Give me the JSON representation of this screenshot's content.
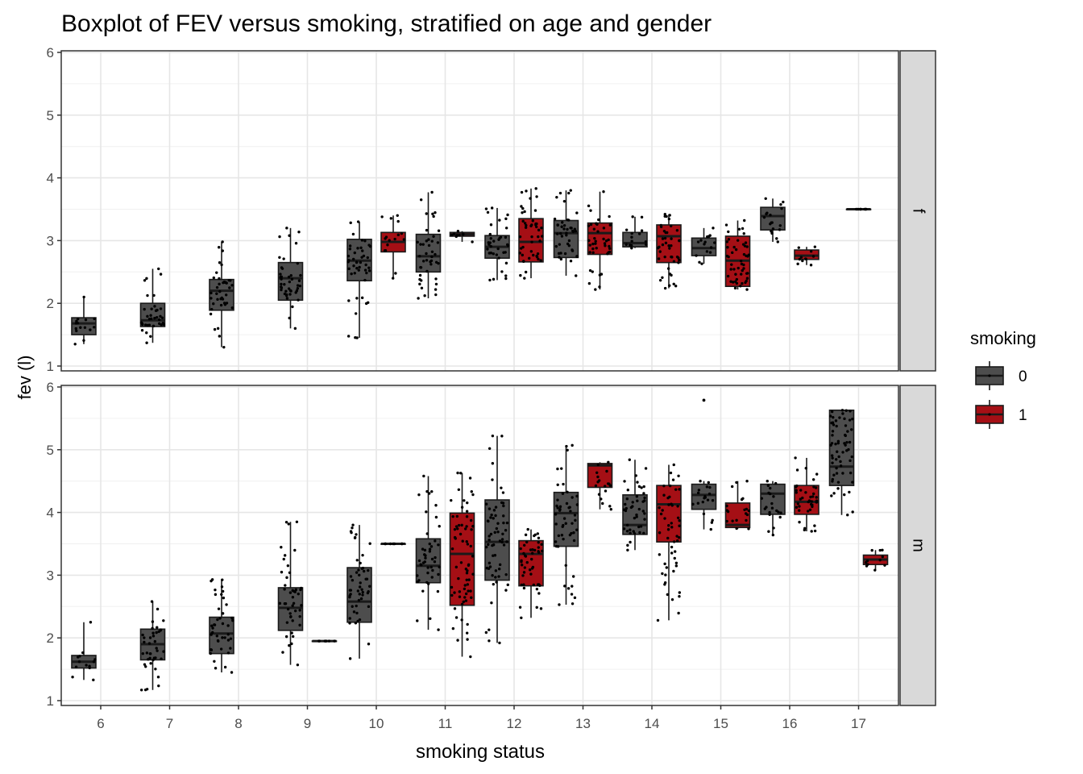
{
  "chart_data": {
    "type": "boxplot",
    "title": "Boxplot of FEV versus smoking, stratified on age and gender",
    "xlabel": "smoking status",
    "ylabel": "fev (l)",
    "x_categories": [
      "6",
      "7",
      "8",
      "9",
      "10",
      "11",
      "12",
      "13",
      "14",
      "15",
      "16",
      "17"
    ],
    "ylim": [
      1,
      6
    ],
    "y_ticks": [
      1,
      2,
      3,
      4,
      5,
      6
    ],
    "grid": true,
    "legend": {
      "title": "smoking",
      "position": "right",
      "entries": [
        {
          "label": "0",
          "color": "#4d4d4d"
        },
        {
          "label": "1",
          "color": "#a50f15"
        }
      ]
    },
    "facets": [
      {
        "strip_label": "f",
        "boxes": [
          {
            "x": "6",
            "smoking": "0",
            "min": 1.35,
            "q1": 1.5,
            "median": 1.68,
            "q3": 1.77,
            "max": 2.1
          },
          {
            "x": "7",
            "smoking": "0",
            "min": 1.37,
            "q1": 1.63,
            "median": 1.73,
            "q3": 2.0,
            "max": 2.55
          },
          {
            "x": "8",
            "smoking": "0",
            "min": 1.3,
            "q1": 1.89,
            "median": 2.2,
            "q3": 2.38,
            "max": 2.98
          },
          {
            "x": "9",
            "smoking": "0",
            "min": 1.6,
            "q1": 2.05,
            "median": 2.4,
            "q3": 2.65,
            "max": 3.2
          },
          {
            "x": "10",
            "smoking": "0",
            "min": 1.45,
            "q1": 2.36,
            "median": 2.68,
            "q3": 3.02,
            "max": 3.3
          },
          {
            "x": "10",
            "smoking": "1",
            "min": 2.4,
            "q1": 2.82,
            "median": 2.98,
            "q3": 3.13,
            "max": 3.4
          },
          {
            "x": "11",
            "smoking": "0",
            "min": 2.08,
            "q1": 2.5,
            "median": 2.75,
            "q3": 3.1,
            "max": 3.77
          },
          {
            "x": "11",
            "smoking": "1",
            "min": 2.98,
            "q1": 3.07,
            "median": 3.1,
            "q3": 3.13,
            "max": 3.15
          },
          {
            "x": "12",
            "smoking": "0",
            "min": 2.37,
            "q1": 2.72,
            "median": 2.9,
            "q3": 3.08,
            "max": 3.52
          },
          {
            "x": "12",
            "smoking": "1",
            "min": 2.4,
            "q1": 2.66,
            "median": 2.98,
            "q3": 3.35,
            "max": 3.83
          },
          {
            "x": "13",
            "smoking": "0",
            "min": 2.44,
            "q1": 2.73,
            "median": 3.12,
            "q3": 3.32,
            "max": 3.8
          },
          {
            "x": "13",
            "smoking": "1",
            "min": 2.22,
            "q1": 2.78,
            "median": 3.12,
            "q3": 3.28,
            "max": 3.78
          },
          {
            "x": "14",
            "smoking": "0",
            "min": 2.88,
            "q1": 2.9,
            "median": 2.96,
            "q3": 3.13,
            "max": 3.38
          },
          {
            "x": "14",
            "smoking": "1",
            "min": 2.24,
            "q1": 2.65,
            "median": 3.07,
            "q3": 3.25,
            "max": 3.42
          },
          {
            "x": "15",
            "smoking": "0",
            "min": 2.63,
            "q1": 2.76,
            "median": 2.88,
            "q3": 3.04,
            "max": 3.2
          },
          {
            "x": "15",
            "smoking": "1",
            "min": 2.22,
            "q1": 2.27,
            "median": 2.68,
            "q3": 3.07,
            "max": 3.32
          },
          {
            "x": "16",
            "smoking": "0",
            "min": 2.98,
            "q1": 3.17,
            "median": 3.39,
            "q3": 3.53,
            "max": 3.67
          },
          {
            "x": "16",
            "smoking": "1",
            "min": 2.61,
            "q1": 2.7,
            "median": 2.76,
            "q3": 2.85,
            "max": 2.9
          },
          {
            "x": "17",
            "smoking": "0",
            "min": 3.5,
            "q1": 3.5,
            "median": 3.5,
            "q3": 3.5,
            "max": 3.5
          }
        ]
      },
      {
        "strip_label": "m",
        "boxes": [
          {
            "x": "6",
            "smoking": "0",
            "min": 1.33,
            "q1": 1.52,
            "median": 1.62,
            "q3": 1.72,
            "max": 2.25
          },
          {
            "x": "7",
            "smoking": "0",
            "min": 1.17,
            "q1": 1.65,
            "median": 1.9,
            "q3": 2.14,
            "max": 2.58
          },
          {
            "x": "8",
            "smoking": "0",
            "min": 1.45,
            "q1": 1.75,
            "median": 2.07,
            "q3": 2.33,
            "max": 2.93
          },
          {
            "x": "9",
            "smoking": "0",
            "min": 1.57,
            "q1": 2.12,
            "median": 2.48,
            "q3": 2.8,
            "max": 3.85
          },
          {
            "x": "9",
            "smoking": "1",
            "min": 1.95,
            "q1": 1.95,
            "median": 1.95,
            "q3": 1.95,
            "max": 1.95
          },
          {
            "x": "10",
            "smoking": "0",
            "min": 1.67,
            "q1": 2.25,
            "median": 2.58,
            "q3": 3.12,
            "max": 3.8
          },
          {
            "x": "10",
            "smoking": "1",
            "min": 3.5,
            "q1": 3.5,
            "median": 3.5,
            "q3": 3.5,
            "max": 3.5
          },
          {
            "x": "11",
            "smoking": "0",
            "min": 2.13,
            "q1": 2.88,
            "median": 3.15,
            "q3": 3.58,
            "max": 4.58
          },
          {
            "x": "11",
            "smoking": "1",
            "min": 1.7,
            "q1": 2.52,
            "median": 3.34,
            "q3": 3.99,
            "max": 4.63
          },
          {
            "x": "12",
            "smoking": "0",
            "min": 1.92,
            "q1": 2.92,
            "median": 3.53,
            "q3": 4.2,
            "max": 5.22
          },
          {
            "x": "12",
            "smoking": "1",
            "min": 2.32,
            "q1": 2.83,
            "median": 3.34,
            "q3": 3.55,
            "max": 3.73
          },
          {
            "x": "13",
            "smoking": "0",
            "min": 2.53,
            "q1": 3.46,
            "median": 3.99,
            "q3": 4.32,
            "max": 5.07
          },
          {
            "x": "13",
            "smoking": "1",
            "min": 4.05,
            "q1": 4.4,
            "median": 4.75,
            "q3": 4.78,
            "max": 4.8
          },
          {
            "x": "14",
            "smoking": "0",
            "min": 3.4,
            "q1": 3.65,
            "median": 3.8,
            "q3": 4.28,
            "max": 4.84
          },
          {
            "x": "14",
            "smoking": "1",
            "min": 2.28,
            "q1": 3.53,
            "median": 4.13,
            "q3": 4.43,
            "max": 4.76
          },
          {
            "x": "15",
            "smoking": "0",
            "min": 3.73,
            "q1": 4.05,
            "median": 4.28,
            "q3": 4.45,
            "max": 4.5
          },
          {
            "x": "15",
            "smoking": "1",
            "min": 3.74,
            "q1": 3.76,
            "median": 3.8,
            "q3": 4.15,
            "max": 4.5
          },
          {
            "x": "16",
            "smoking": "0",
            "min": 3.64,
            "q1": 3.97,
            "median": 4.3,
            "q3": 4.45,
            "max": 4.5
          },
          {
            "x": "16",
            "smoking": "1",
            "min": 3.7,
            "q1": 3.97,
            "median": 4.17,
            "q3": 4.43,
            "max": 4.87
          },
          {
            "x": "17",
            "smoking": "0",
            "min": 3.96,
            "q1": 4.43,
            "median": 4.73,
            "q3": 5.63,
            "max": 5.63
          },
          {
            "x": "17",
            "smoking": "1",
            "min": 3.08,
            "q1": 3.17,
            "median": 3.25,
            "q3": 3.32,
            "max": 3.4
          }
        ],
        "outliers": [
          {
            "x": "15",
            "smoking": "0",
            "value": 5.79
          }
        ]
      }
    ]
  }
}
